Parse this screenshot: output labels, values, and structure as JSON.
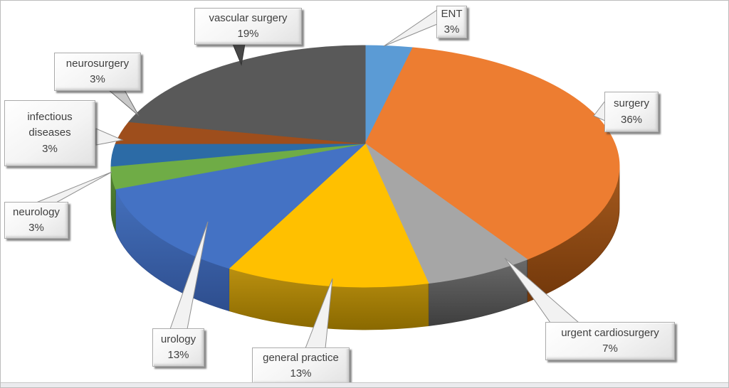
{
  "figure": {
    "kind": "3d-pie-chart",
    "background": "#ffffff",
    "frame_border_color": "#bdbdbd",
    "label_text_color": "#3f3f3f"
  },
  "chart_data": {
    "type": "pie",
    "style": "3d-perspective",
    "title": "",
    "legend_position": "none",
    "categories": [
      "ENT",
      "surgery",
      "urgent cardiosurgery",
      "general practice",
      "urology",
      "neurology",
      "infectious diseases",
      "neurosurgery",
      "vascular surgery"
    ],
    "values": [
      3,
      36,
      7,
      13,
      13,
      3,
      3,
      3,
      19
    ],
    "unit": "%",
    "colors": [
      "#5B9BD5",
      "#ED7D31",
      "#A6A6A6",
      "#FFC000",
      "#4472C4",
      "#6FAC46",
      "#2C6BA6",
      "#9E4E1C",
      "#595959"
    ],
    "callouts": [
      {
        "category": "ENT",
        "lines": [
          "ENT",
          "3%"
        ]
      },
      {
        "category": "surgery",
        "lines": [
          "surgery",
          "36%"
        ]
      },
      {
        "category": "urgent cardiosurgery",
        "lines": [
          "urgent cardiosurgery",
          "7%"
        ]
      },
      {
        "category": "general practice",
        "lines": [
          "general practice",
          "13%"
        ]
      },
      {
        "category": "urology",
        "lines": [
          "urology",
          "13%"
        ]
      },
      {
        "category": "neurology",
        "lines": [
          "neurology",
          "3%"
        ]
      },
      {
        "category": "infectious diseases",
        "lines": [
          "infectious",
          "diseases",
          "3%"
        ]
      },
      {
        "category": "neurosurgery",
        "lines": [
          "neurosurgery",
          "3%"
        ]
      },
      {
        "category": "vascular surgery",
        "lines": [
          "vascular  surgery",
          "19%"
        ]
      }
    ]
  }
}
